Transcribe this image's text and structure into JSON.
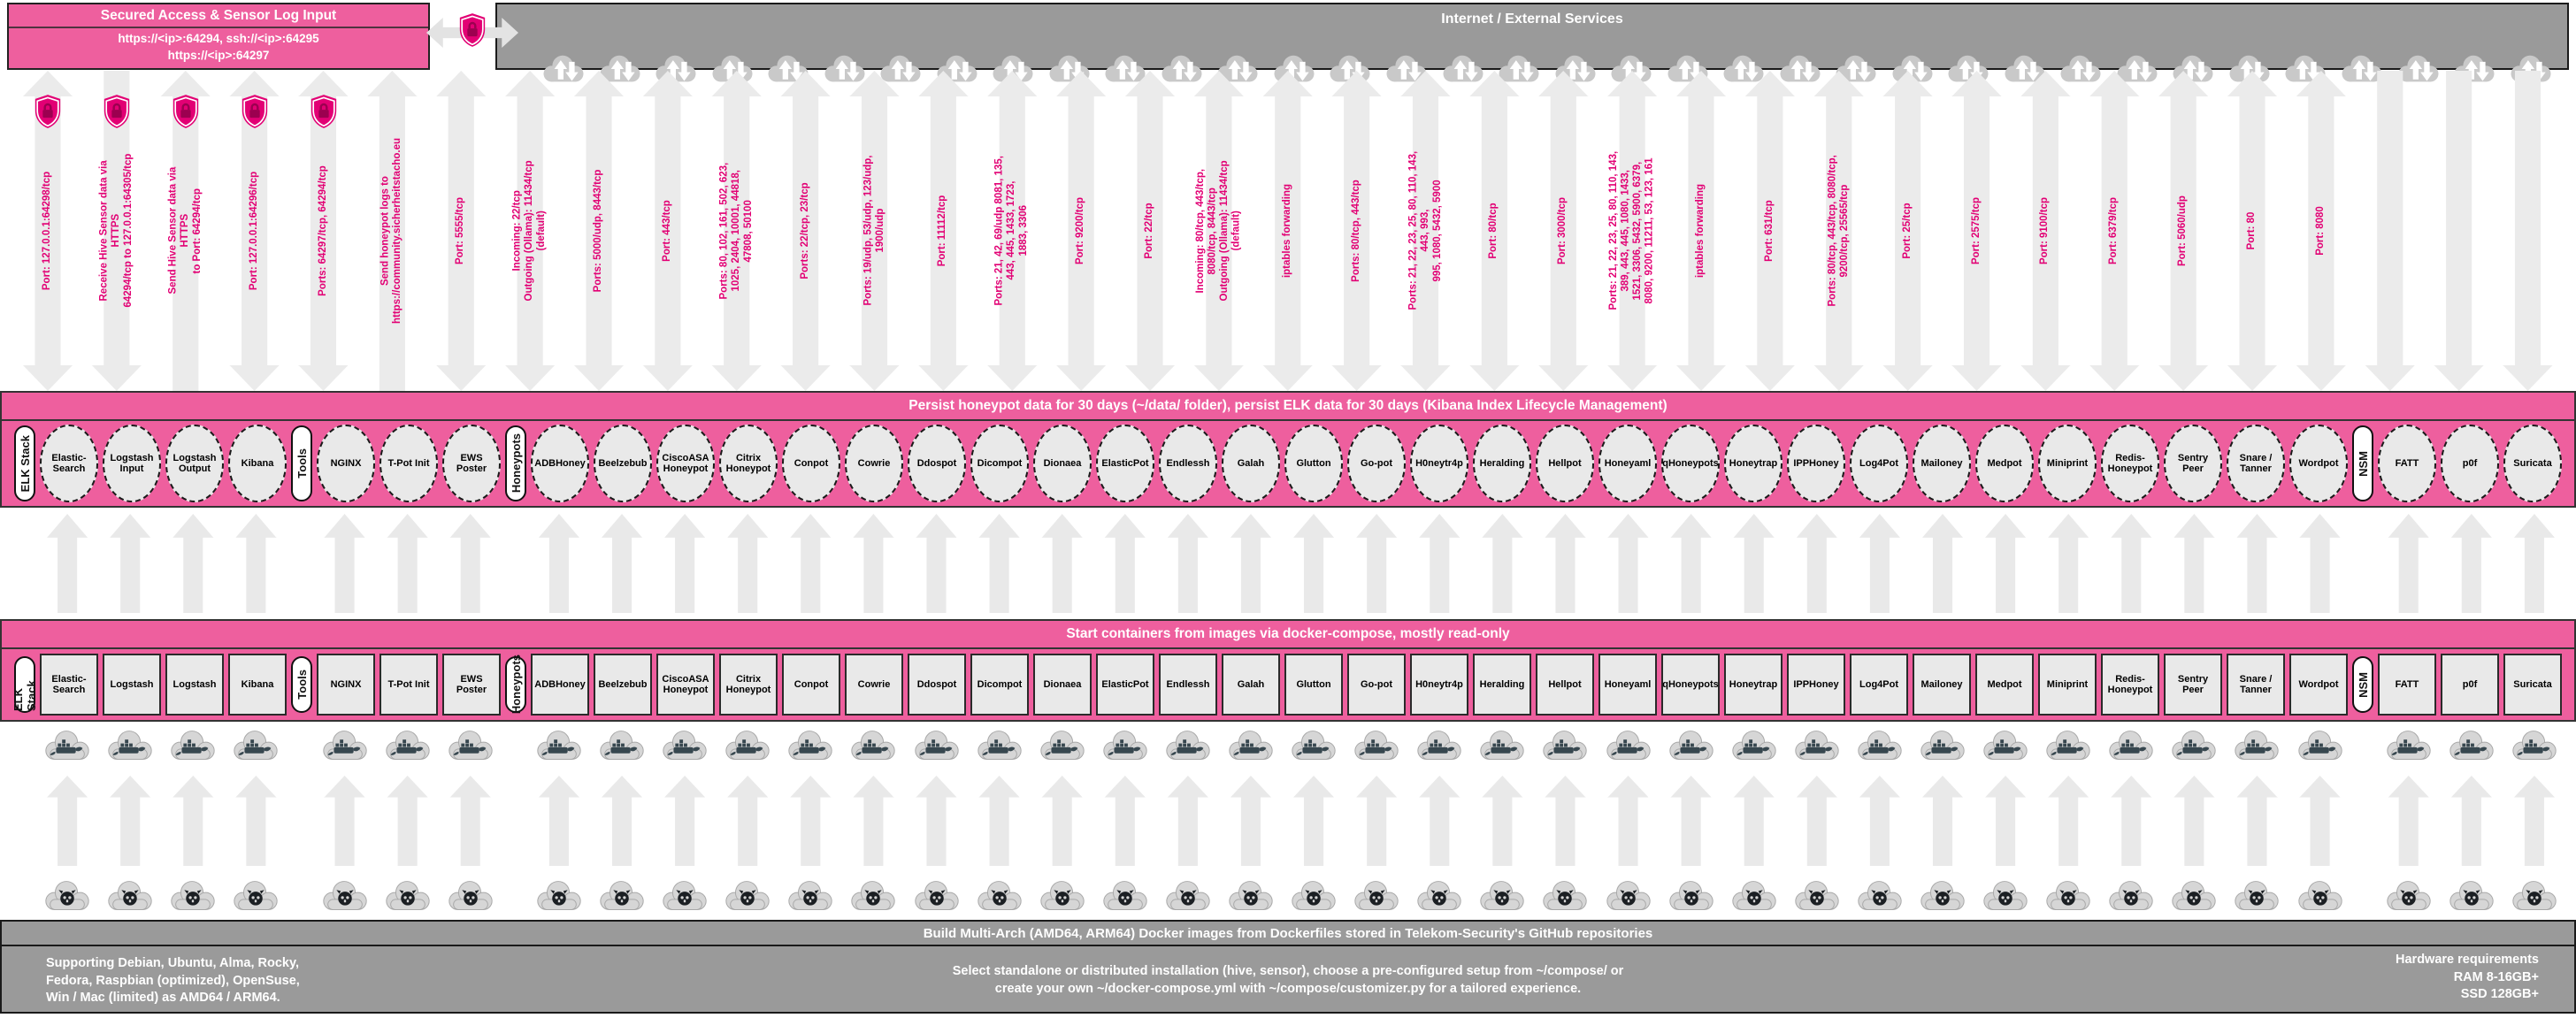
{
  "colors": {
    "pink": "#ee5f9e",
    "magenta": "#e20074",
    "gray": "#9a9a9a",
    "arrow_fill": "#ebebeb"
  },
  "icons": {
    "shield": "lock-shield-icon",
    "cloud": "cloud-sync-icon",
    "docker": "docker-cloud-icon",
    "github": "github-cloud-icon"
  },
  "top": {
    "access_box": {
      "title": "Secured Access & Sensor Log Input",
      "line1": "https://<ip>:64294, ssh://<ip>:64295",
      "line2": "https://<ip>:64297"
    },
    "internet_bar": {
      "title": "Internet / External Services",
      "cloud_count": 36
    }
  },
  "port_arrows": [
    {
      "text": "Port: 127.0.0.1:64298/tcp",
      "dir": "both",
      "shield": true
    },
    {
      "text": "Receive Hive Sensor data via HTTPS\n64294/tcp to 127.0.0.1:64305/tcp",
      "dir": "down",
      "shield": true
    },
    {
      "text": "Send Hive Sensor data via HTTPS\nto Port: 64294/tcp",
      "dir": "up",
      "shield": true
    },
    {
      "text": "Port: 127.0.0.1:64296/tcp",
      "dir": "both",
      "shield": true
    },
    {
      "text": "Ports: 64297/tcp, 64294/tcp",
      "dir": "both",
      "shield": true
    },
    {
      "text": "Send honeypot logs to\nhttps://community.sicherheitstacho.eu",
      "dir": "up",
      "shield": false
    },
    {
      "text": "Port: 5555/tcp",
      "dir": "both",
      "shield": false
    },
    {
      "text": "Incoming: 22/tcp\nOutgoing (Ollama): 11434/tcp (default)",
      "dir": "both",
      "shield": false
    },
    {
      "text": "Ports: 5000/udp, 8443/tcp",
      "dir": "both",
      "shield": false
    },
    {
      "text": "Port: 443/tcp",
      "dir": "both",
      "shield": false
    },
    {
      "text": "Ports: 80, 102, 161, 502, 623, 1025, 2404, 10001, 44818,\n47808, 50100",
      "dir": "both",
      "shield": false
    },
    {
      "text": "Ports: 22/tcp, 23/tcp",
      "dir": "both",
      "shield": false
    },
    {
      "text": "Ports: 19/udp, 53/udp, 123/udp, 1900/udp",
      "dir": "both",
      "shield": false
    },
    {
      "text": "Port: 11112/tcp",
      "dir": "both",
      "shield": false
    },
    {
      "text": "Ports: 21, 42, 69/udp 8081, 135, 443, 445, 1433, 1723,\n1883, 3306",
      "dir": "both",
      "shield": false
    },
    {
      "text": "Port: 9200/tcp",
      "dir": "both",
      "shield": false
    },
    {
      "text": "Port: 22/tcp",
      "dir": "both",
      "shield": false
    },
    {
      "text": "Incoming: 80/tcp, 443/tcp, 8080/tcp, 8443/tcp\nOutgoing (Ollama): 11434/tcp (default)",
      "dir": "both",
      "shield": false
    },
    {
      "text": "iptables forwarding",
      "dir": "both",
      "shield": false
    },
    {
      "text": "Ports: 80/tcp, 443/tcp",
      "dir": "both",
      "shield": false
    },
    {
      "text": "Ports: 21, 22, 23, 25, 80, 110, 143, 443, 993,\n995, 1080, 5432, 5900",
      "dir": "both",
      "shield": false
    },
    {
      "text": "Port: 80/tcp",
      "dir": "both",
      "shield": false
    },
    {
      "text": "Port: 3000/tcp",
      "dir": "both",
      "shield": false
    },
    {
      "text": "Ports: 21, 22, 23, 25, 80, 110, 143, 389, 443, 445, 1080, 1433,\n1521, 3306, 5432, 5900, 6379, 8080, 9200, 11211, 53, 123, 161",
      "dir": "both",
      "shield": false
    },
    {
      "text": "iptables forwarding",
      "dir": "both",
      "shield": false
    },
    {
      "text": "Port: 631/tcp",
      "dir": "both",
      "shield": false
    },
    {
      "text": "Ports: 80/tcp, 443/tcp, 8080/tcp, 9200/tcp, 25565/tcp",
      "dir": "both",
      "shield": false
    },
    {
      "text": "Port: 25/tcp",
      "dir": "both",
      "shield": false
    },
    {
      "text": "Port: 2575/tcp",
      "dir": "both",
      "shield": false
    },
    {
      "text": "Port: 9100/tcp",
      "dir": "both",
      "shield": false
    },
    {
      "text": "Port: 6379/tcp",
      "dir": "both",
      "shield": false
    },
    {
      "text": "Port: 5060/udp",
      "dir": "both",
      "shield": false
    },
    {
      "text": "Port: 80",
      "dir": "both",
      "shield": false
    },
    {
      "text": "Port: 8080",
      "dir": "both",
      "shield": false
    },
    {
      "text": "",
      "dir": "down",
      "shield": false
    },
    {
      "text": "",
      "dir": "down",
      "shield": false
    },
    {
      "text": "",
      "dir": "down",
      "shield": false
    }
  ],
  "persist_bar": {
    "title": "Persist honeypot data for 30 days (~/data/ folder), persist ELK data for 30 days (Kibana Index Lifecycle Management)"
  },
  "compose_bar": {
    "title": "Start containers from images via docker-compose, mostly read-only"
  },
  "groups": [
    {
      "label": "ELK Stack",
      "services": [
        "Elastic-Search",
        "Logstash Input",
        "Logstash Output",
        "Kibana"
      ],
      "images": [
        "Elastic-Search",
        "Logstash",
        "Logstash",
        "Kibana"
      ]
    },
    {
      "label": "Tools",
      "services": [
        "NGINX",
        "T-Pot Init",
        "EWS Poster"
      ]
    },
    {
      "label": "Honeypots",
      "services": [
        "ADBHoney",
        "Beelzebub",
        "CiscoASA Honeypot",
        "Citrix Honeypot",
        "Conpot",
        "Cowrie",
        "Ddospot",
        "Dicompot",
        "Dionaea",
        "ElasticPot",
        "Endlessh",
        "Galah",
        "Glutton",
        "Go-pot",
        "H0neytr4p",
        "Heralding",
        "Hellpot",
        "Honeyaml",
        "qHoneypots",
        "Honeytrap",
        "IPPHoney",
        "Log4Pot",
        "Mailoney",
        "Medpot",
        "Miniprint",
        "Redis-Honeypot",
        "Sentry Peer",
        "Snare / Tanner",
        "Wordpot"
      ]
    },
    {
      "label": "NSM",
      "services": [
        "FATT",
        "p0f",
        "Suricata"
      ]
    }
  ],
  "build_bar": {
    "title": "Build Multi-Arch (AMD64, ARM64) Docker images from Dockerfiles stored in Telekom-Security's GitHub repositories"
  },
  "footer": {
    "left": "Supporting Debian, Ubuntu, Alma, Rocky,\nFedora, Raspbian (optimized), OpenSuse,\nWin / Mac (limited) as AMD64 / ARM64.",
    "center": "Select standalone or distributed installation (hive, sensor), choose a pre-configured setup from ~/compose/ or\ncreate your own ~/docker-compose.yml with ~/compose/customizer.py for a tailored experience.",
    "right": "Hardware requirements\nRAM 8-16GB+\nSSD 128GB+"
  }
}
